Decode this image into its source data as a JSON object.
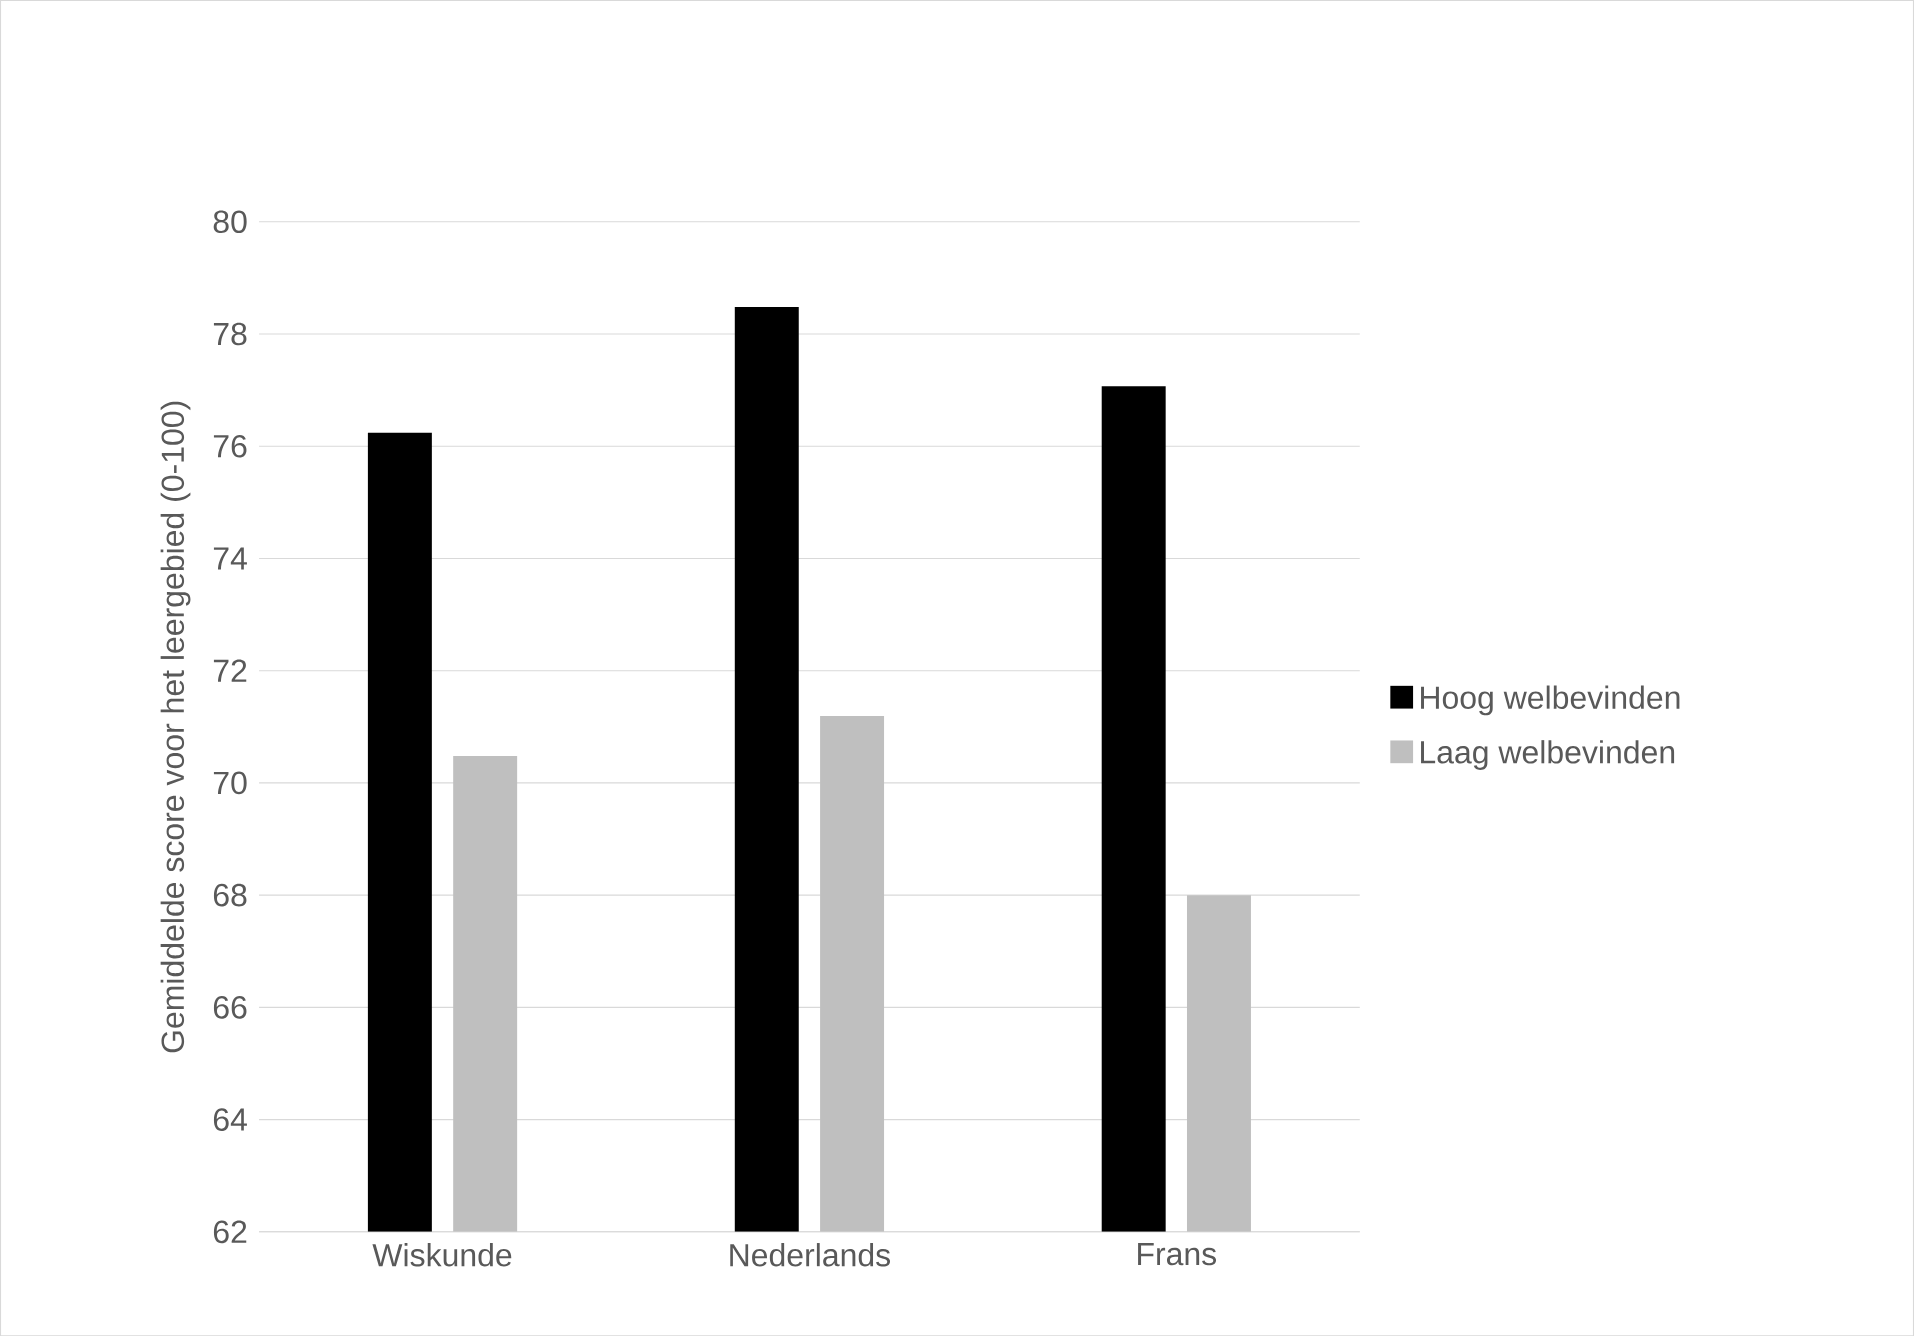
{
  "chart_data": {
    "type": "bar",
    "ylabel": "Gemiddelde score voor het  leergebied (0-100)",
    "categories": [
      "Wiskunde",
      "Nederlands",
      "Frans"
    ],
    "series": [
      {
        "name": "Hoog welbevinden",
        "color": "#000000",
        "values": [
          76.24,
          78.48,
          77.07
        ]
      },
      {
        "name": "Laag welbevinden",
        "color": "#bfbfbf",
        "values": [
          70.48,
          71.19,
          68.0
        ]
      }
    ],
    "ylim": [
      62,
      80
    ],
    "yticks": [
      62,
      64,
      66,
      68,
      70,
      72,
      74,
      76,
      78,
      80
    ],
    "grid": "y",
    "legend": "right"
  }
}
